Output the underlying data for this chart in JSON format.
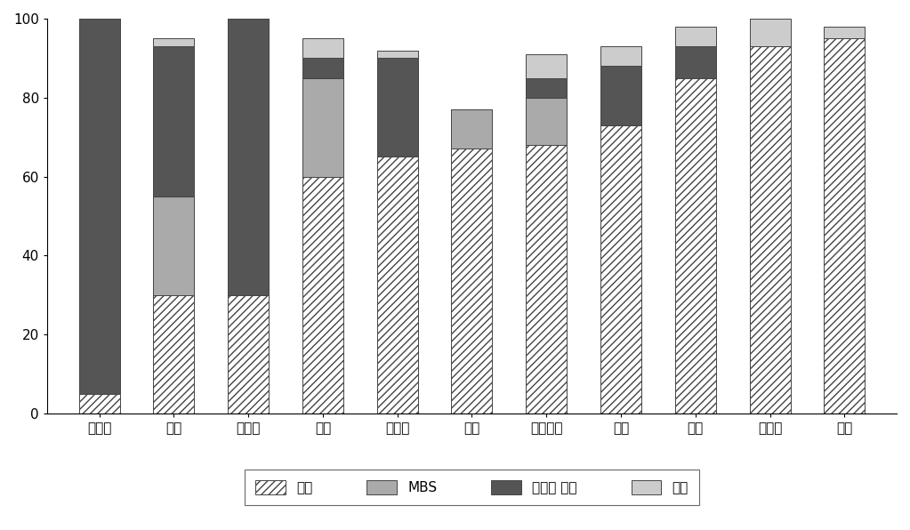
{
  "categories": [
    "덤마크",
    "미국",
    "스페인",
    "영국",
    "캐나다",
    "일본",
    "네덜란드",
    "독일",
    "호주",
    "스위스",
    "한국"
  ],
  "series": {
    "deposit": [
      5,
      30,
      30,
      60,
      65,
      67,
      68,
      73,
      85,
      93,
      95
    ],
    "mbs": [
      0,
      25,
      0,
      25,
      0,
      10,
      12,
      0,
      0,
      0,
      0
    ],
    "mortgage": [
      95,
      38,
      70,
      5,
      25,
      0,
      5,
      15,
      8,
      0,
      0
    ],
    "other": [
      0,
      2,
      0,
      5,
      2,
      0,
      6,
      5,
      5,
      7,
      3
    ]
  },
  "colors": {
    "deposit": "#ffffff",
    "mbs": "#aaaaaa",
    "mortgage": "#555555",
    "other": "#cccccc"
  },
  "hatch": {
    "deposit": "////",
    "mbs": "",
    "mortgage": "",
    "other": ""
  },
  "ylim": [
    0,
    100
  ],
  "yticks": [
    0,
    20,
    40,
    60,
    80,
    100
  ],
  "bar_width": 0.55,
  "edgecolor": "#444444",
  "background_color": "#ffffff",
  "tick_fontsize": 11,
  "legend_fontsize": 11,
  "legend_labels": [
    "예금",
    "MBS",
    "모기지 채권",
    "기타"
  ]
}
